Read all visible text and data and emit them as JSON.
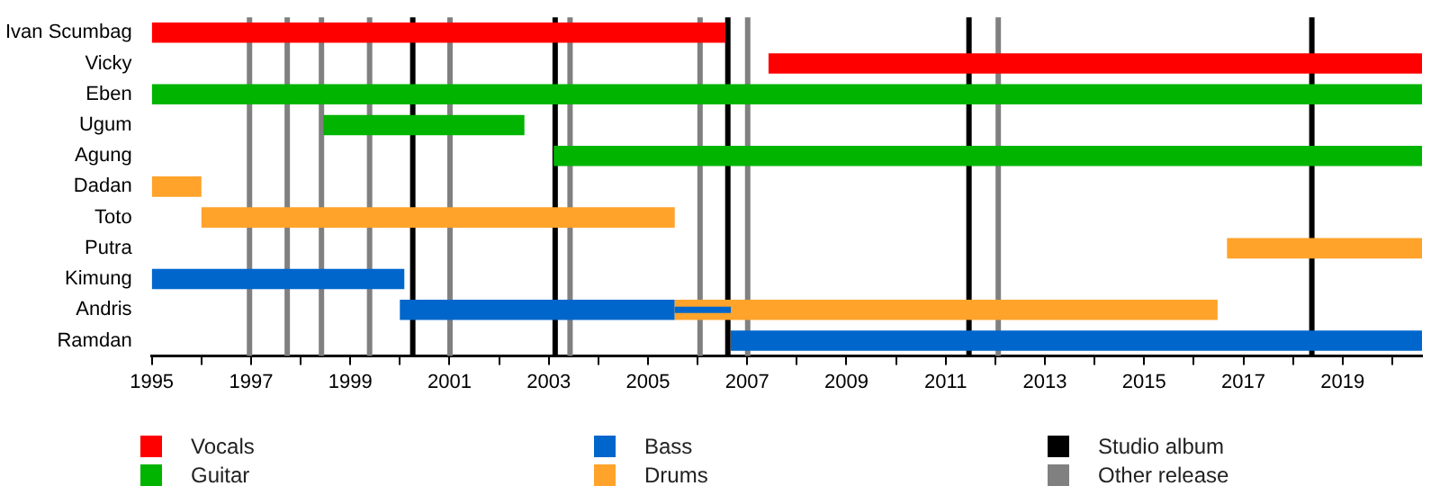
{
  "chart_data": {
    "type": "bar",
    "orientation": "horizontal",
    "categories": [
      "Ivan Scumbag",
      "Vicky",
      "Eben",
      "Ugum",
      "Agung",
      "Dadan",
      "Toto",
      "Putra",
      "Kimung",
      "Andris",
      "Ramdan"
    ],
    "series": [
      {
        "name": "Vocals",
        "color": "#ff0000",
        "base": [
          1995,
          2007.43,
          null,
          null,
          null,
          null,
          null,
          null,
          null,
          null,
          null
        ],
        "values": [
          11.56,
          13.17,
          null,
          null,
          null,
          null,
          null,
          null,
          null,
          null,
          null
        ]
      },
      {
        "name": "Guitar",
        "color": "#00b400",
        "base": [
          null,
          null,
          1995,
          1998.46,
          2003.1,
          null,
          null,
          null,
          null,
          null,
          null
        ],
        "values": [
          null,
          null,
          25.6,
          4.05,
          17.5,
          null,
          null,
          null,
          null,
          null,
          null
        ]
      },
      {
        "name": "Bass",
        "color": "#0066cc",
        "base": [
          null,
          null,
          null,
          null,
          null,
          null,
          null,
          null,
          1995,
          2000,
          2006.67
        ],
        "values": [
          null,
          null,
          null,
          null,
          null,
          null,
          null,
          null,
          5.09,
          5.54,
          13.93
        ]
      },
      {
        "name": "Drums",
        "color": "#ffa32a",
        "base": [
          null,
          null,
          null,
          null,
          null,
          1995,
          1996,
          2016.67,
          null,
          2005.54,
          null
        ],
        "values": [
          null,
          null,
          null,
          null,
          null,
          1,
          9.54,
          3.93,
          null,
          10.94,
          null
        ]
      },
      {
        "color": "#0066cc",
        "base": [
          null,
          null,
          null,
          null,
          null,
          null,
          null,
          null,
          null,
          2005.54,
          null
        ],
        "values": [
          null,
          null,
          null,
          null,
          null,
          null,
          null,
          null,
          null,
          1.13,
          null
        ]
      }
    ],
    "xlim": [
      1995,
      2020.6
    ],
    "xticks": [
      1995,
      {
        "value": 1996,
        "label": null
      },
      1997,
      {
        "value": 1998,
        "label": null
      },
      1999,
      {
        "value": 2000,
        "label": null
      },
      2001,
      {
        "value": 2002,
        "label": null
      },
      2003,
      {
        "value": 2004,
        "label": null
      },
      2005,
      {
        "value": 2006,
        "label": null
      },
      2007,
      {
        "value": 2008,
        "label": null
      },
      2009,
      {
        "value": 2010,
        "label": null
      },
      2011,
      {
        "value": 2012,
        "label": null
      },
      2013,
      {
        "value": 2014,
        "label": null
      },
      2015,
      {
        "value": 2016,
        "label": null
      },
      2017,
      {
        "value": 2018,
        "label": null
      },
      2019,
      {
        "value": 2020,
        "label": null
      }
    ],
    "ref_lines": [
      {
        "axis": "x",
        "value": 2000.26,
        "label": "Studio album",
        "color": "#000000"
      },
      {
        "axis": "x",
        "value": 2003.13,
        "color": "#000000"
      },
      {
        "axis": "x",
        "value": 2006.61,
        "color": "#000000"
      },
      {
        "axis": "x",
        "value": 2011.47,
        "color": "#000000"
      },
      {
        "axis": "x",
        "value": 2018.38,
        "color": "#000000"
      },
      {
        "axis": "x",
        "value": 1996.97,
        "label": "Other release",
        "color": "#808080"
      },
      {
        "axis": "x",
        "value": 1997.73,
        "color": "#808080"
      },
      {
        "axis": "x",
        "value": 1998.42,
        "color": "#808080"
      },
      {
        "axis": "x",
        "value": 1999.39,
        "color": "#808080"
      },
      {
        "axis": "x",
        "value": 2001.01,
        "color": "#808080"
      },
      {
        "axis": "x",
        "value": 2003.43,
        "color": "#808080"
      },
      {
        "axis": "x",
        "value": 2006.05,
        "color": "#808080"
      },
      {
        "axis": "x",
        "value": 2007.01,
        "color": "#808080"
      },
      {
        "axis": "x",
        "value": 2012.06,
        "color": "#808080"
      }
    ],
    "legend": "bottom"
  }
}
